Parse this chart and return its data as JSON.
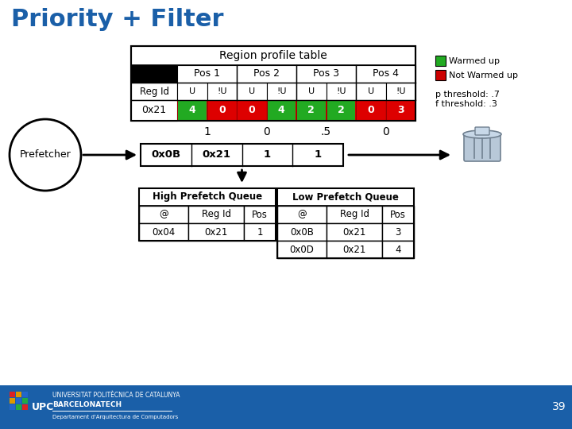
{
  "title": "Priority + Filter",
  "title_color": "#1a5fa8",
  "bg_color": "#ffffff",
  "region_table": {
    "header": "Region profile table",
    "pos_headers": [
      "Pos 1",
      "Pos 2",
      "Pos 3",
      "Pos 4"
    ],
    "sub_headers": [
      "U",
      "!U",
      "U",
      "!U",
      "U",
      "!U",
      "U",
      "!U"
    ],
    "row_id_label": "Reg Id",
    "row_label": "0x21",
    "values": [
      4,
      0,
      0,
      4,
      2,
      2,
      0,
      3
    ],
    "cell_colors": [
      "#22aa22",
      "#dd0000",
      "#dd0000",
      "#22aa22",
      "#22aa22",
      "#22aa22",
      "#dd0000",
      "#dd0000"
    ],
    "scores": [
      "1",
      "0",
      ".5",
      "0"
    ]
  },
  "legend": {
    "warmed_color": "#22aa22",
    "not_warmed_color": "#cc0000",
    "warmed_label": "Warmed up",
    "not_warmed_label": "Not Warmed up",
    "p_threshold": "p threshold: .7",
    "f_threshold": "f threshold: .3"
  },
  "prefetch_row": {
    "cells": [
      "0x0B",
      "0x21",
      "1",
      "1"
    ]
  },
  "high_queue": {
    "title": "High Prefetch Queue",
    "headers": [
      "@",
      "Reg Id",
      "Pos"
    ],
    "rows": [
      [
        "0x04",
        "0x21",
        "1"
      ]
    ]
  },
  "low_queue": {
    "title": "Low Prefetch Queue",
    "headers": [
      "@",
      "Reg Id",
      "Pos"
    ],
    "rows": [
      [
        "0x0B",
        "0x21",
        "3"
      ],
      [
        "0x0D",
        "0x21",
        "4"
      ]
    ]
  },
  "footer_bg": "#1a5fa8",
  "page_number": "39"
}
